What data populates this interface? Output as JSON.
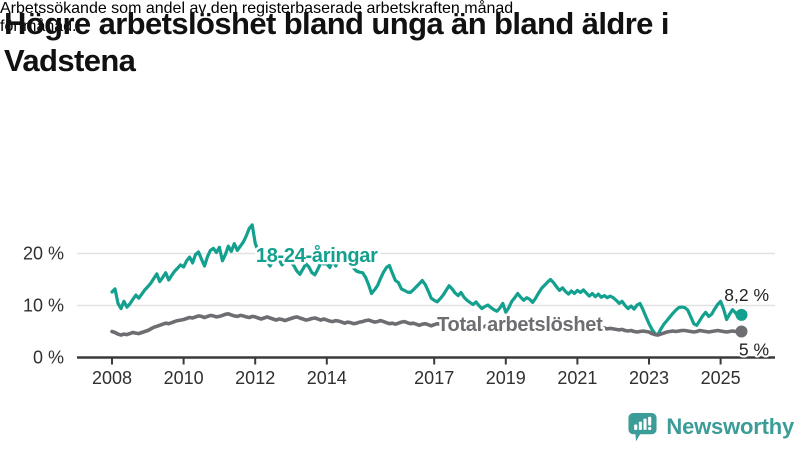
{
  "header": {
    "title_lines": [
      "Högre arbetslöshet bland unga än bland äldre i",
      "Vadstena"
    ],
    "subtitle_lines": [
      "Arbetssökande som andel av den registerbaserade arbetskraften månad",
      "för månad."
    ]
  },
  "footer": {
    "brand": "Newsworthy"
  },
  "colors": {
    "young_line": "#13a08e",
    "total_line": "#6e6e72",
    "axis": "#3a3a3a",
    "grid": "#e1e1e1",
    "brand": "#3b9c98"
  },
  "chart_data": {
    "type": "line",
    "x_start": 2008.0,
    "x_step_months": 1,
    "xlabel": "",
    "ylabel": "",
    "ylim": [
      0,
      27
    ],
    "grid": "horizontal",
    "legend": "inline-annotations",
    "xticks": [
      2008,
      2010,
      2012,
      2014,
      2017,
      2019,
      2021,
      2023,
      2025
    ],
    "yticks": [
      {
        "v": 0,
        "label": "0 %"
      },
      {
        "v": 10,
        "label": "10 %"
      },
      {
        "v": 20,
        "label": "20 %"
      }
    ],
    "series": [
      {
        "id": "young",
        "name": "18-24-åringar",
        "color": "#13a08e",
        "width": 3.2,
        "annotation": {
          "text": "18-24-åringar",
          "x": 2012.02,
          "y": 18.4
        },
        "end_label": "8,2 %",
        "end_value": 8.2,
        "end_label_offset": -14,
        "values": [
          12.6,
          13.2,
          10.4,
          9.4,
          10.8,
          9.7,
          10.3,
          11.2,
          12.0,
          11.4,
          12.2,
          13.0,
          13.6,
          14.3,
          15.2,
          16.1,
          14.6,
          15.4,
          16.3,
          14.9,
          15.8,
          16.6,
          17.2,
          17.8,
          17.4,
          18.6,
          19.3,
          18.2,
          19.8,
          20.3,
          18.9,
          17.6,
          19.4,
          20.6,
          21.0,
          20.2,
          21.2,
          18.6,
          19.8,
          21.4,
          20.4,
          21.9,
          20.6,
          21.4,
          22.2,
          23.4,
          24.8,
          25.5,
          22.0,
          20.3,
          19.0,
          19.8,
          18.4,
          17.6,
          18.6,
          19.6,
          18.8,
          17.8,
          18.4,
          19.2,
          18.4,
          17.6,
          16.6,
          16.0,
          17.0,
          18.0,
          17.4,
          16.3,
          15.9,
          17.0,
          18.2,
          18.0,
          18.0,
          17.3,
          18.6,
          17.6,
          18.9,
          19.8,
          20.1,
          19.2,
          18.4,
          17.2,
          16.6,
          16.4,
          16.3,
          15.4,
          14.0,
          12.3,
          13.0,
          13.8,
          15.2,
          16.4,
          17.3,
          17.7,
          16.2,
          14.8,
          14.4,
          13.2,
          12.9,
          12.6,
          12.5,
          13.0,
          13.6,
          14.2,
          14.8,
          14.0,
          12.8,
          11.4,
          11.0,
          10.7,
          11.3,
          12.0,
          12.9,
          13.8,
          13.2,
          12.4,
          11.9,
          12.5,
          11.6,
          11.0,
          10.6,
          10.2,
          10.7,
          10.0,
          9.4,
          9.8,
          10.1,
          9.6,
          9.2,
          8.9,
          9.5,
          10.4,
          8.7,
          9.6,
          10.8,
          11.5,
          12.3,
          11.6,
          11.0,
          11.5,
          11.2,
          10.6,
          11.4,
          12.4,
          13.3,
          13.9,
          14.5,
          15.0,
          14.4,
          13.6,
          12.9,
          13.4,
          12.7,
          12.2,
          12.8,
          12.3,
          12.9,
          12.5,
          13.0,
          12.4,
          11.8,
          12.3,
          11.7,
          12.2,
          11.6,
          11.9,
          11.5,
          11.8,
          11.5,
          11.0,
          10.4,
          10.8,
          10.0,
          9.4,
          9.9,
          9.3,
          10.1,
          10.4,
          9.2,
          7.8,
          6.5,
          5.4,
          4.6,
          4.4,
          5.5,
          6.4,
          7.1,
          7.8,
          8.5,
          9.1,
          9.6,
          9.7,
          9.6,
          9.1,
          7.8,
          6.5,
          6.2,
          7.1,
          8.0,
          8.7,
          7.9,
          8.3,
          9.3,
          10.2,
          10.8,
          9.3,
          7.3,
          8.3,
          9.2,
          8.6,
          7.7,
          8.2
        ]
      },
      {
        "id": "total",
        "name": "Total arbetslöshet",
        "color": "#6e6e72",
        "width": 3.6,
        "annotation": {
          "text": "Total arbetslöshet",
          "x": 2017.08,
          "y": 5.1
        },
        "end_label": "5 %",
        "end_value": 5.0,
        "end_label_offset": 24,
        "values": [
          5.0,
          4.8,
          4.5,
          4.3,
          4.5,
          4.4,
          4.6,
          4.8,
          4.7,
          4.6,
          4.8,
          5.0,
          5.2,
          5.5,
          5.8,
          6.0,
          6.2,
          6.4,
          6.6,
          6.5,
          6.7,
          6.9,
          7.1,
          7.2,
          7.3,
          7.5,
          7.7,
          7.6,
          7.8,
          8.0,
          7.9,
          7.7,
          7.9,
          8.1,
          8.0,
          7.8,
          7.9,
          8.1,
          8.3,
          8.4,
          8.2,
          8.0,
          7.9,
          8.1,
          8.0,
          7.8,
          7.7,
          7.9,
          7.8,
          7.6,
          7.4,
          7.6,
          7.8,
          7.6,
          7.4,
          7.2,
          7.4,
          7.3,
          7.1,
          7.3,
          7.5,
          7.7,
          7.8,
          7.6,
          7.4,
          7.2,
          7.3,
          7.5,
          7.6,
          7.4,
          7.2,
          7.4,
          7.2,
          7.0,
          6.9,
          7.1,
          7.0,
          6.8,
          6.6,
          6.8,
          6.7,
          6.5,
          6.6,
          6.8,
          6.9,
          7.1,
          7.2,
          7.0,
          6.8,
          6.9,
          7.1,
          6.9,
          6.7,
          6.5,
          6.6,
          6.4,
          6.6,
          6.8,
          6.9,
          6.7,
          6.5,
          6.6,
          6.4,
          6.2,
          6.4,
          6.5,
          6.3,
          6.1,
          6.3,
          6.5,
          6.4,
          6.2,
          6.0,
          6.1,
          6.3,
          6.1,
          5.9,
          6.0,
          6.2,
          6.0,
          6.2,
          6.3,
          6.1,
          5.9,
          5.8,
          6.0,
          6.1,
          5.9,
          5.7,
          5.9,
          6.0,
          5.8,
          6.0,
          6.1,
          5.9,
          5.7,
          5.8,
          6.0,
          5.9,
          5.7,
          5.6,
          5.8,
          5.9,
          6.0,
          5.9,
          5.8,
          6.0,
          6.3,
          6.4,
          6.2,
          6.1,
          6.2,
          6.0,
          5.9,
          6.0,
          6.1,
          6.2,
          6.1,
          6.0,
          6.1,
          5.9,
          5.8,
          5.9,
          5.7,
          5.6,
          5.7,
          5.5,
          5.6,
          5.5,
          5.4,
          5.3,
          5.4,
          5.2,
          5.1,
          5.2,
          5.0,
          4.9,
          5.0,
          5.1,
          5.0,
          4.9,
          4.6,
          4.4,
          4.3,
          4.5,
          4.7,
          4.9,
          5.0,
          5.1,
          5.0,
          5.1,
          5.2,
          5.2,
          5.1,
          5.0,
          4.9,
          5.0,
          5.2,
          5.1,
          5.0,
          4.9,
          5.0,
          5.1,
          5.2,
          5.1,
          5.0,
          4.9,
          5.0,
          5.1,
          5.0,
          4.9,
          5.0
        ]
      }
    ]
  }
}
